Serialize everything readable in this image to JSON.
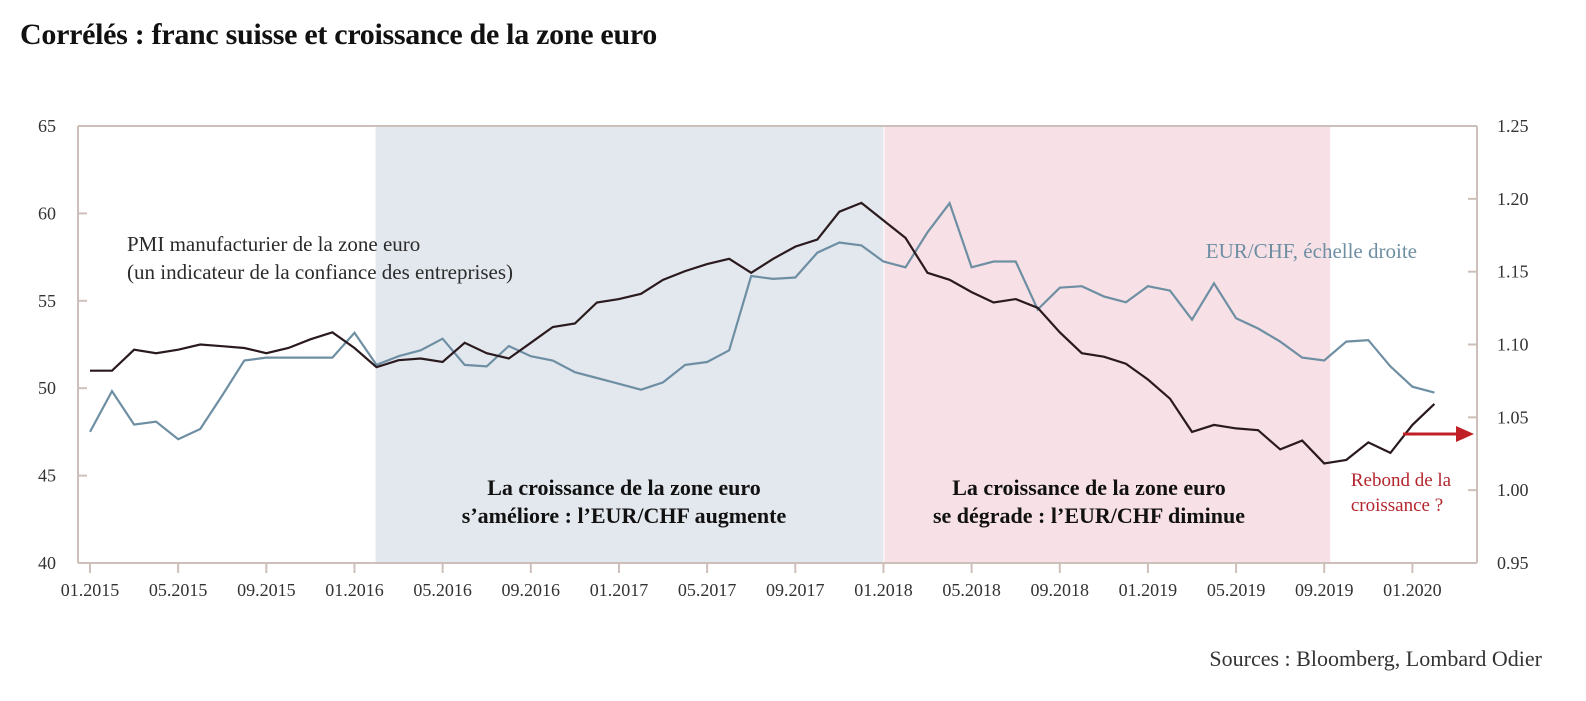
{
  "title": "Corrélés : franc suisse et croissance de la zone euro",
  "source": "Sources : Bloomberg, Lombard Odier",
  "colors": {
    "pmi": "#2a1a1e",
    "eurchf": "#6e8fa3",
    "band_improve": "#e3e8ee",
    "band_degrade": "#f7e1e6",
    "axis": "#cdbfb9",
    "arrow": "#c01f25",
    "rebound_text": "#b3262d"
  },
  "chart_data": {
    "type": "line",
    "title": "Corrélés : franc suisse et croissance de la zone euro",
    "xlabel": "",
    "x_start": "2015-01",
    "x_ticks": [
      "01.2015",
      "05.2015",
      "09.2015",
      "01.2016",
      "05.2016",
      "09.2016",
      "01.2017",
      "05.2017",
      "09.2017",
      "01.2018",
      "05.2018",
      "09.2018",
      "01.2019",
      "05.2019",
      "09.2019",
      "01.2020"
    ],
    "ylim_left": [
      40,
      65
    ],
    "yticks_left": [
      "65",
      "60",
      "55",
      "50",
      "45",
      "40"
    ],
    "ylim_right": [
      0.95,
      1.25
    ],
    "yticks_right": [
      "1.25",
      "1.20",
      "1.15",
      "1.10",
      "1.05",
      "1.00",
      "0.95"
    ],
    "series": [
      {
        "name": "PMI manufacturier de la zone euro",
        "axis": "left",
        "values": [
          51.0,
          51.0,
          52.2,
          52.0,
          52.2,
          52.5,
          52.4,
          52.3,
          52.0,
          52.3,
          52.8,
          53.2,
          52.3,
          51.2,
          51.6,
          51.7,
          51.5,
          52.6,
          52.0,
          51.7,
          52.6,
          53.5,
          53.7,
          54.9,
          55.1,
          55.4,
          56.2,
          56.7,
          57.1,
          57.4,
          56.6,
          57.4,
          58.1,
          58.5,
          60.1,
          60.6,
          59.6,
          58.6,
          56.6,
          56.2,
          55.5,
          54.9,
          55.1,
          54.6,
          53.2,
          52.0,
          51.8,
          51.4,
          50.5,
          49.4,
          47.5,
          47.9,
          47.7,
          47.6,
          46.5,
          47.0,
          45.7,
          45.9,
          46.9,
          46.3,
          47.9,
          49.1
        ]
      },
      {
        "name": "EUR/CHF, échelle droite",
        "axis": "right",
        "values": [
          1.04,
          1.068,
          1.045,
          1.047,
          1.035,
          1.042,
          1.065,
          1.089,
          1.091,
          1.091,
          1.091,
          1.091,
          1.108,
          1.086,
          1.092,
          1.096,
          1.104,
          1.086,
          1.085,
          1.099,
          1.092,
          1.089,
          1.081,
          1.077,
          1.073,
          1.069,
          1.074,
          1.086,
          1.088,
          1.096,
          1.147,
          1.145,
          1.146,
          1.163,
          1.17,
          1.168,
          1.157,
          1.153,
          1.177,
          1.197,
          1.153,
          1.157,
          1.157,
          1.124,
          1.139,
          1.14,
          1.133,
          1.129,
          1.14,
          1.137,
          1.117,
          1.142,
          1.118,
          1.111,
          1.102,
          1.091,
          1.089,
          1.102,
          1.103,
          1.085,
          1.071,
          1.067
        ]
      }
    ],
    "annotations": {
      "pmi_label_line1": "PMI manufacturier de la zone euro",
      "pmi_label_line2": "(un indicateur de la confiance des entreprises)",
      "eurchf_label": "EUR/CHF, échelle droite",
      "band_improve_line1": "La croissance de la zone euro",
      "band_improve_line2": "s’améliore : l’EUR/CHF augmente",
      "band_degrade_line1": "La croissance de la zone euro",
      "band_degrade_line2": "se dégrade : l’EUR/CHF diminue",
      "rebound_line1": "Rebond de la",
      "rebound_line2": "croissance ?"
    },
    "bands": [
      {
        "name": "improve",
        "from": "2016-02",
        "to": "2017-12"
      },
      {
        "name": "degrade",
        "from": "2018-01",
        "to": "2019-09"
      }
    ],
    "grid": false,
    "legend": "none"
  }
}
